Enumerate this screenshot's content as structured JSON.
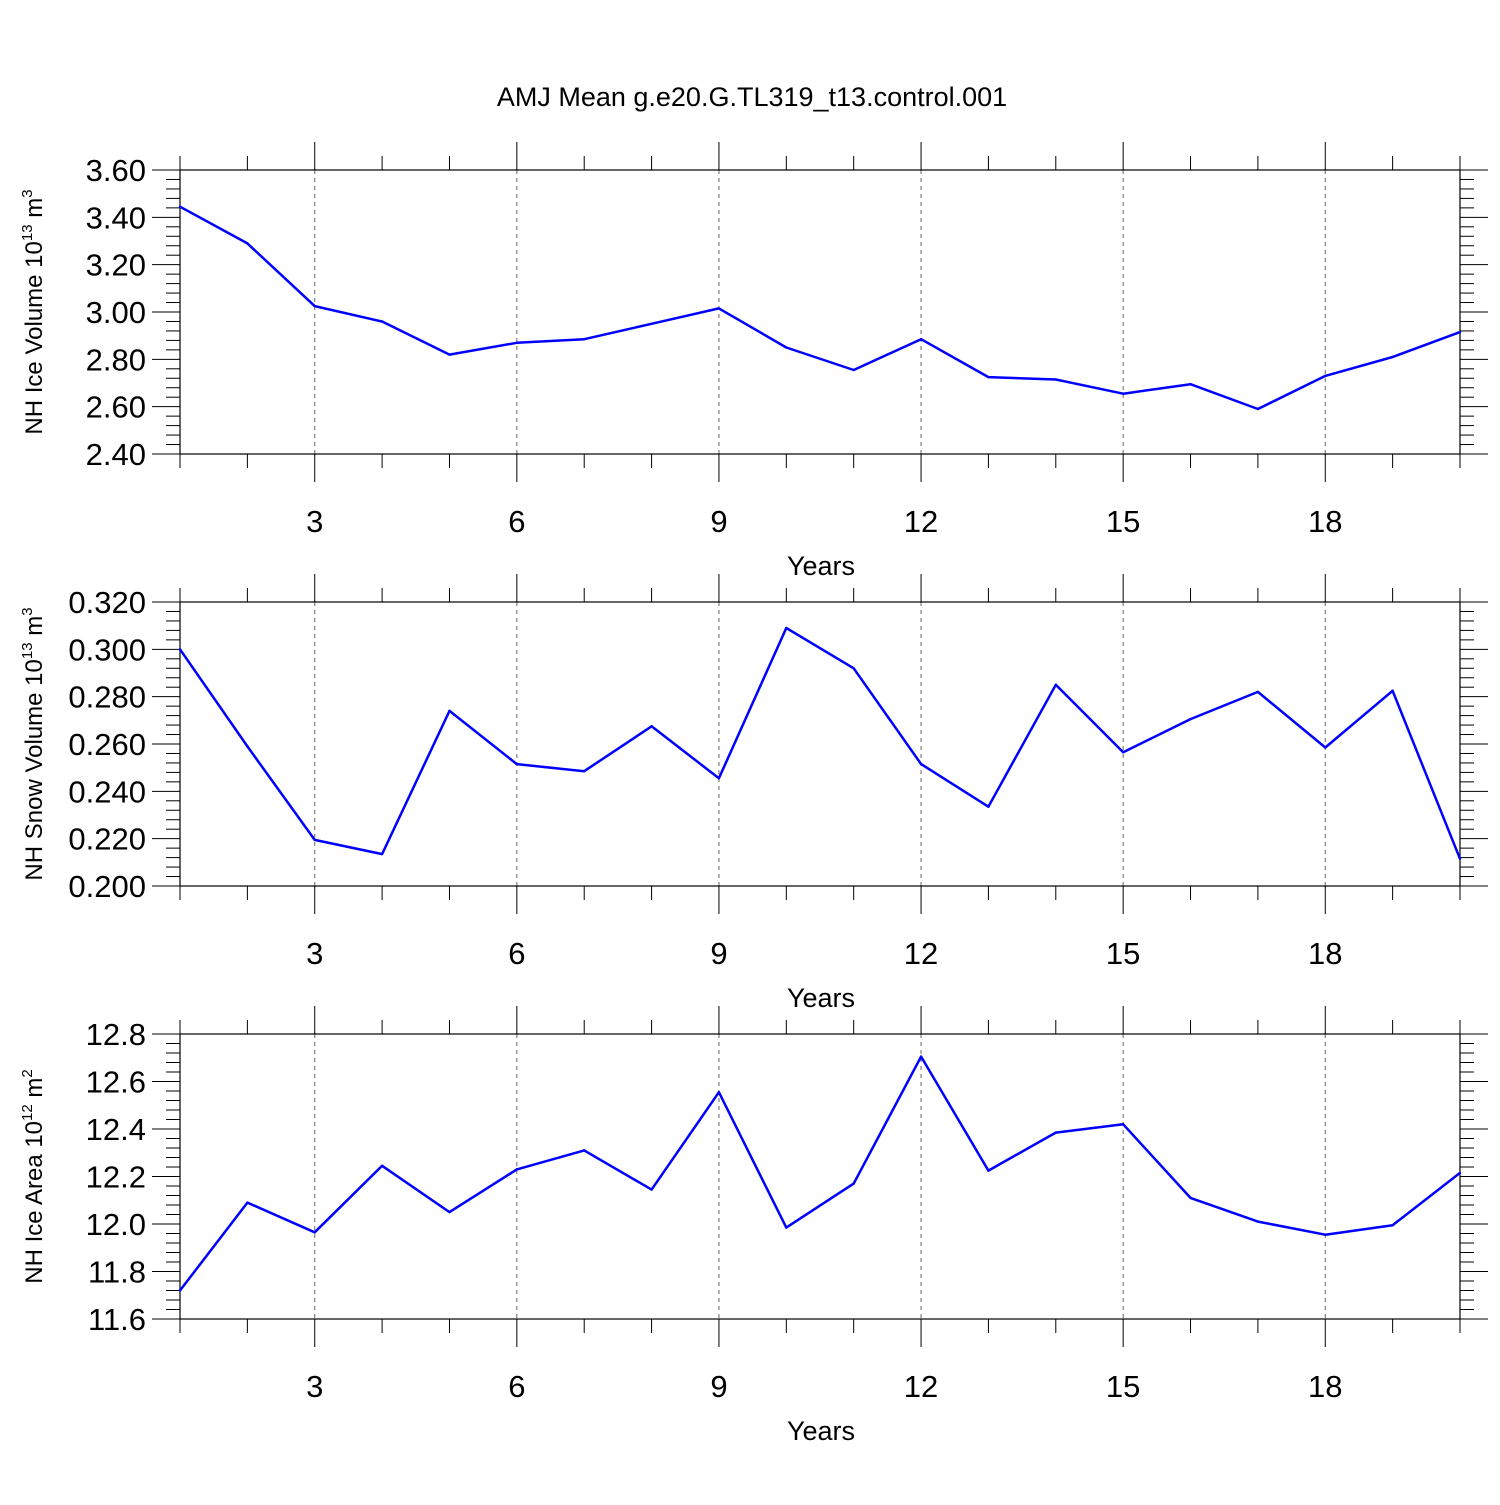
{
  "title": "AMJ Mean g.e20.G.TL319_t13.control.001",
  "line_color": "#0000ff",
  "chart_data": [
    {
      "type": "line",
      "xlabel": "Years",
      "ylabel": {
        "main": "NH Ice Volume 10",
        "sup": "13",
        "mid": " m",
        "sup2": "3"
      },
      "xlim": [
        1,
        20
      ],
      "ylim": [
        2.4,
        3.6
      ],
      "x_ticks": [
        3,
        6,
        9,
        12,
        15,
        18
      ],
      "y_ticks": [
        "2.40",
        "2.60",
        "2.80",
        "3.00",
        "3.20",
        "3.40",
        "3.60"
      ],
      "x": [
        1,
        2,
        3,
        4,
        5,
        6,
        7,
        8,
        9,
        10,
        11,
        12,
        13,
        14,
        15,
        16,
        17,
        18,
        19,
        20
      ],
      "values": [
        3.445,
        3.29,
        3.025,
        2.96,
        2.82,
        2.87,
        2.885,
        2.95,
        3.015,
        2.85,
        2.755,
        2.885,
        2.725,
        2.715,
        2.655,
        2.695,
        2.59,
        2.73,
        2.81,
        2.915
      ]
    },
    {
      "type": "line",
      "xlabel": "Years",
      "ylabel": {
        "main": "NH Snow Volume 10",
        "sup": "13",
        "mid": " m",
        "sup2": "3"
      },
      "xlim": [
        1,
        20
      ],
      "ylim": [
        0.2,
        0.32
      ],
      "x_ticks": [
        3,
        6,
        9,
        12,
        15,
        18
      ],
      "y_ticks": [
        "0.200",
        "0.220",
        "0.240",
        "0.260",
        "0.280",
        "0.300",
        "0.320"
      ],
      "x": [
        1,
        2,
        3,
        4,
        5,
        6,
        7,
        8,
        9,
        10,
        11,
        12,
        13,
        14,
        15,
        16,
        17,
        18,
        19,
        20
      ],
      "values": [
        0.3,
        0.259,
        0.2195,
        0.2135,
        0.274,
        0.2515,
        0.2485,
        0.2675,
        0.2455,
        0.309,
        0.292,
        0.2515,
        0.2335,
        0.285,
        0.2565,
        0.2705,
        0.282,
        0.2585,
        0.2825,
        0.2115
      ]
    },
    {
      "type": "line",
      "xlabel": "Years",
      "ylabel": {
        "main": "NH Ice Area 10",
        "sup": "12",
        "mid": " m",
        "sup2": "2"
      },
      "xlim": [
        1,
        20
      ],
      "ylim": [
        11.6,
        12.8
      ],
      "x_ticks": [
        3,
        6,
        9,
        12,
        15,
        18
      ],
      "y_ticks": [
        "11.6",
        "11.8",
        "12.0",
        "12.2",
        "12.4",
        "12.6",
        "12.8"
      ],
      "x": [
        1,
        2,
        3,
        4,
        5,
        6,
        7,
        8,
        9,
        10,
        11,
        12,
        13,
        14,
        15,
        16,
        17,
        18,
        19,
        20
      ],
      "values": [
        11.72,
        12.09,
        11.965,
        12.245,
        12.05,
        12.23,
        12.31,
        12.145,
        12.555,
        11.985,
        12.17,
        12.705,
        12.225,
        12.385,
        12.42,
        12.11,
        12.01,
        11.955,
        11.995,
        12.215
      ]
    }
  ]
}
